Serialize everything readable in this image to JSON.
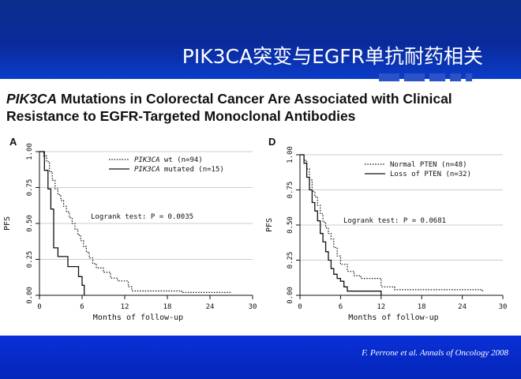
{
  "slide": {
    "title": "PIK3CA突变与EGFR单抗耐药相关",
    "paper_title_italic": "PIK3CA",
    "paper_title_rest": " Mutations in Colorectal Cancer Are Associated with Clinical",
    "paper_title_line2": "Resistance to EGFR-Targeted Monoclonal Antibodies",
    "citation": "F. Perrone  et al. Annals of Oncology 2008",
    "colors": {
      "header": "#0b2c8c",
      "footer": "#0526b8",
      "title_text": "#ffffff"
    }
  },
  "chart_data": [
    {
      "type": "line",
      "panel": "A",
      "xlabel": "Months of follow-up",
      "ylabel": "PFS",
      "xlim": [
        0,
        30
      ],
      "ylim": [
        0,
        1
      ],
      "xticks": [
        "0",
        "6",
        "12",
        "18",
        "24",
        "30"
      ],
      "yticks": [
        "0.00",
        "0.25",
        "0.50",
        "0.75",
        "1.00"
      ],
      "grid": true,
      "legend_placement": "top-right",
      "annotation": "Logrank test: P = 0.0035",
      "series": [
        {
          "name_italic": "PIK3CA",
          "name_rest": " wt (n=94)",
          "style": "dotted",
          "x": [
            0,
            0.6,
            1,
            1.4,
            1.8,
            2.2,
            2.6,
            3,
            3.4,
            3.8,
            4.2,
            4.6,
            5,
            5.4,
            5.8,
            6.2,
            6.6,
            7,
            7.5,
            8,
            9,
            10,
            11,
            12,
            12.5,
            13,
            16,
            20,
            24,
            27
          ],
          "y": [
            1,
            0.97,
            0.93,
            0.86,
            0.8,
            0.74,
            0.7,
            0.66,
            0.62,
            0.58,
            0.54,
            0.5,
            0.46,
            0.42,
            0.38,
            0.34,
            0.3,
            0.26,
            0.22,
            0.19,
            0.16,
            0.12,
            0.1,
            0.1,
            0.06,
            0.03,
            0.03,
            0.02,
            0.02,
            0.02
          ]
        },
        {
          "name_italic": "PIK3CA",
          "name_rest": " mutated (n=15)",
          "style": "solid",
          "x": [
            0,
            0.7,
            1.2,
            1.6,
            2,
            2.6,
            3.2,
            4,
            5,
            5.5,
            6,
            6.3
          ],
          "y": [
            1,
            0.87,
            0.74,
            0.6,
            0.33,
            0.27,
            0.27,
            0.2,
            0.2,
            0.13,
            0.07,
            0
          ]
        }
      ]
    },
    {
      "type": "line",
      "panel": "D",
      "xlabel": "Months of follow-up",
      "ylabel": "PFS",
      "xlim": [
        0,
        30
      ],
      "ylim": [
        0,
        1
      ],
      "xticks": [
        "0",
        "6",
        "12",
        "18",
        "24",
        "30"
      ],
      "yticks": [
        "0.00",
        "0.25",
        "0.50",
        "0.75",
        "1.00"
      ],
      "grid": true,
      "legend_placement": "top-right",
      "annotation": "Logrank test: P = 0.0681",
      "series": [
        {
          "name_italic": "",
          "name_rest": "Normal PTEN (n=48)",
          "style": "dotted",
          "x": [
            0,
            0.6,
            1,
            1.4,
            1.8,
            2.2,
            2.6,
            3,
            3.4,
            3.8,
            4.2,
            4.6,
            5,
            5.5,
            6,
            7,
            8,
            9,
            10,
            11,
            12,
            14,
            18,
            24,
            27
          ],
          "y": [
            1,
            0.96,
            0.9,
            0.82,
            0.74,
            0.7,
            0.64,
            0.58,
            0.52,
            0.48,
            0.44,
            0.4,
            0.34,
            0.28,
            0.22,
            0.17,
            0.14,
            0.12,
            0.12,
            0.12,
            0.06,
            0.04,
            0.04,
            0.04,
            0.02
          ]
        },
        {
          "name_italic": "",
          "name_rest": "Loss of PTEN (n=32)",
          "style": "solid",
          "x": [
            0,
            0.6,
            1,
            1.4,
            1.8,
            2.2,
            2.6,
            3,
            3.4,
            3.8,
            4.2,
            4.6,
            5,
            5.5,
            6,
            6.5,
            7,
            8,
            10,
            11,
            12
          ],
          "y": [
            1,
            0.94,
            0.84,
            0.75,
            0.66,
            0.6,
            0.53,
            0.44,
            0.38,
            0.31,
            0.25,
            0.19,
            0.15,
            0.12,
            0.1,
            0.06,
            0.03,
            0.03,
            0.03,
            0.03,
            0
          ]
        }
      ]
    }
  ]
}
